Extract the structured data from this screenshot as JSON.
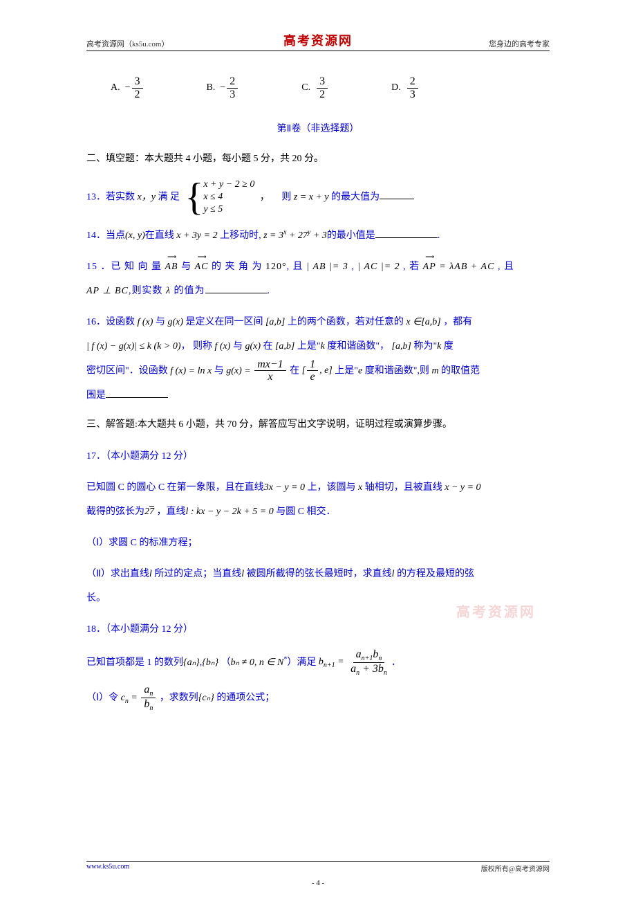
{
  "header": {
    "left": "高考资源网（ks5u.com）",
    "center": "高考资源网",
    "right": "您身边的高考专家"
  },
  "footer": {
    "left": "www.ks5u.com",
    "right": "版权所有@高考资源网",
    "pagenum": "- 4 -"
  },
  "watermark": "高考资源网",
  "answers": {
    "a_label": "A.",
    "b_label": "B.",
    "c_label": "C.",
    "d_label": "D.",
    "a_num": "3",
    "a_den": "2",
    "b_num": "2",
    "b_den": "3",
    "c_num": "3",
    "c_den": "2",
    "d_num": "2",
    "d_den": "3"
  },
  "section2_title": "第Ⅱ卷（非选择题）",
  "section2_intro": "二、填空题：本大题共 4 小题，每小题  5 分，共 20 分。",
  "q13": {
    "prefix": "13．若实数 ",
    "xy": "x，y",
    "mid": " 满 足",
    "sys1": "x + y − 2 ≥ 0",
    "sys2": "x ≤ 4",
    "sys3": "y ≤ 5",
    "comma": "，",
    "then": "则",
    "z": " z = x + y ",
    "end": "的最大值为"
  },
  "q14": {
    "prefix": "14．当点",
    "pt": "(x, y)",
    "t1": "在直线",
    "eq1": " x + 3y = 2 ",
    "t2": "上移动时, ",
    "eq2": "z = 3",
    "sx": "x",
    "plus1": " + 27",
    "sy": "y",
    "plus2": " + 3",
    "end": "的最小值是"
  },
  "q15": {
    "prefix": "15 ．已 知 向 量 ",
    "ab": "AB",
    "t1": " 与 ",
    "ac": "AC",
    "t2": " 的 夹 角 为 ",
    "angle": "120°",
    "t3": ", 且 ",
    "abs_ab": "| AB |= 3",
    "t4": " , ",
    "abs_ac": "| AC |= 2",
    "t5": " , 若 ",
    "ap": "AP",
    "eq": " = λAB + AC",
    "t6": " , 且",
    "line2a": "AP ⊥ BC",
    "t7": ",则实数 ",
    "lambda": "λ ",
    "end": "的值为"
  },
  "q16": {
    "l1a": "16．设函数 ",
    "fx": "f (x)",
    "l1b": " 与 ",
    "gx": "g(x)",
    "l1c": " 是定义在同一区间 ",
    "ab": "[a,b]",
    "l1d": " 上的两个函数，若对任意的 ",
    "xin": "x ∈[a,b]",
    "l1e": " ，都有",
    "l2a": "| f (x) − g(x)| ≤ k  (k > 0)",
    "l2b": "， 则称 ",
    "l2c": " 与 ",
    "l2d": " 在 ",
    "l2e": " 上是\"",
    "k": "k ",
    "l2f": "度和谐函数\"， ",
    "l2g": " 称为\"",
    "l2h": " 度",
    "l3a": "密切区间\"．设函数 ",
    "fxln": "f (x) = ln x",
    "l3b": " 与 ",
    "gxeq": "g(x) = ",
    "gnum": "mx−1",
    "gden": "x",
    "l3c": " 在 ",
    "int1": "[",
    "e1num": "1",
    "e1den": "e",
    "int2": ", e]",
    "l3d": " 上是\"",
    "e": "e ",
    "l3e": "度和谐函数\",则 ",
    "m": "m ",
    "l3f": "的取值范",
    "l4": "围是"
  },
  "section3_intro": "三、解答题:本大题共 6 小题，共 70 分，解答应写出文字说明，证明过程或演算步骤。",
  "q17": {
    "title": "17．（本小题满分 12 分）",
    "l1a": "已知圆 C 的圆心 C 在第一象限，且在直线",
    "eq1": "3x − y = 0",
    "l1b": " 上，该圆与 ",
    "x": "x ",
    "l1c": "轴相切，且被直线",
    "eq2": " x − y = 0",
    "l2a": "截得的弦长为",
    "sqrt7": "2√7",
    "l2b": " ，直线",
    "leq": "l : kx − y − 2k + 5 = 0",
    "l2c": " 与圆 C 相交．",
    "p1": "（Ⅰ）求圆 C 的标准方程；",
    "p2a": "（Ⅱ）求出直线",
    "l": "l ",
    "p2b": "所过的定点；当直线",
    "p2c": " 被圆所截得的弦长最短时，求直线",
    "p2d": " 的方程及最短的弦",
    "p2e": "长。"
  },
  "q18": {
    "title": "18．（本小题满分 12 分）",
    "l1a": "已知首项都是 1 的数列",
    "an": "{aₙ}",
    "l1b": ",",
    "bn": "{bₙ}",
    "l1c": " （",
    "cond": "bₙ ≠ 0, n ∈ N",
    "star": "*",
    "l1d": "）满足 ",
    "lhs": "b",
    "lhs_sub": "n+1",
    "eq": " = ",
    "num1": "a",
    "num1_sub": "n+1",
    "num2": "b",
    "num2_sub": "n",
    "den1": "a",
    "den1_sub": "n",
    "den_plus": " + 3",
    "den2": "b",
    "den2_sub": "n",
    "dot": "．",
    "p1a": "（Ⅰ）令 ",
    "cn": "c",
    "cn_sub": "n",
    "ceq": " = ",
    "cnum": "a",
    "cnum_sub": "n",
    "cden": "b",
    "cden_sub": "n",
    "p1b": " ，求数列",
    "cnb": "{cₙ}",
    "p1c": " 的通项公式；"
  }
}
